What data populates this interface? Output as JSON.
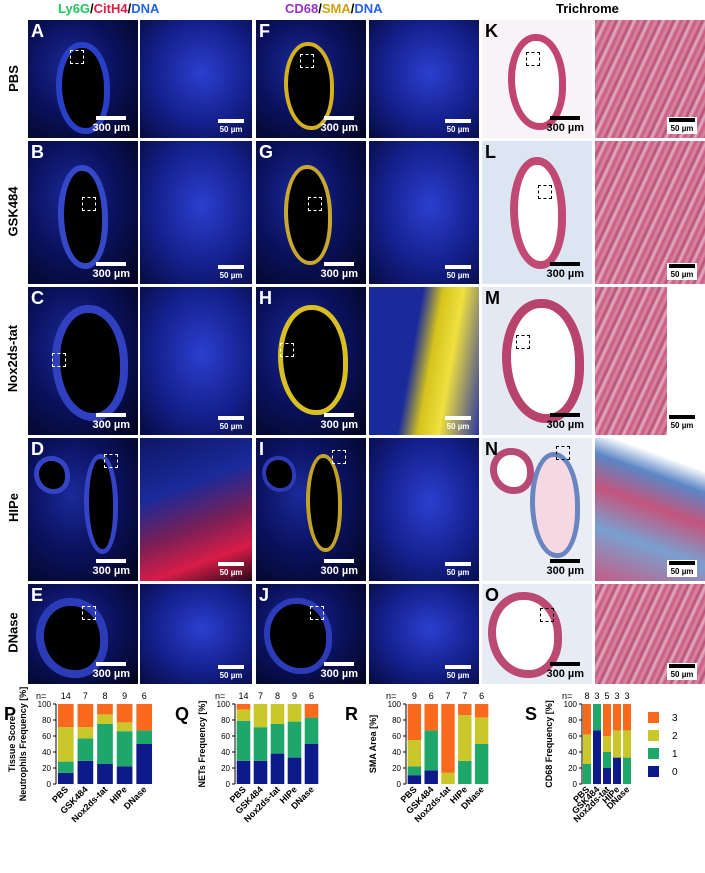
{
  "headers": {
    "fluor1": {
      "a": "Ly6G",
      "sep1": "/",
      "b": "CitH4",
      "sep2": "/",
      "c": "DNA"
    },
    "fluor2": {
      "a": "CD68",
      "sep1": "/",
      "b": "SMA",
      "sep2": "/",
      "c": "DNA"
    },
    "trichrome": "Trichrome"
  },
  "colors": {
    "ly6g": "#22c55e",
    "cith4": "#e11d48",
    "dna": "#2563eb",
    "cd68": "#9b30c7",
    "sma": "#d4a10f",
    "c3": "#fb6a1c",
    "c2": "#c9c72a",
    "c1": "#1fa66b",
    "c0": "#0e1a8a"
  },
  "rows": [
    "PBS",
    "GSK484",
    "Nox2ds-tat",
    "HIPe",
    "DNase"
  ],
  "panel_letters": {
    "col1": [
      "A",
      "B",
      "C",
      "D",
      "E"
    ],
    "col2": [
      "F",
      "G",
      "H",
      "I",
      "J"
    ],
    "col3": [
      "K",
      "L",
      "M",
      "N",
      "O"
    ]
  },
  "scale": {
    "big": "300 µm",
    "small": "50 µm"
  },
  "chart_data": [
    {
      "type": "bar",
      "stacked": true,
      "panel": "P",
      "ylabel": "Tissue Score\nNeutrophils Frequency [%]",
      "categories": [
        "PBS",
        "GSK484",
        "Nox2ds-tat",
        "HIPe",
        "DNase"
      ],
      "n_label": "n=",
      "n": [
        "14",
        "7",
        "8",
        "9",
        "6"
      ],
      "ylim": [
        0,
        100
      ],
      "yticks": [
        "0",
        "20",
        "40",
        "60",
        "80",
        "100"
      ],
      "series": [
        {
          "name": "0",
          "values": [
            14,
            29,
            25,
            22,
            50
          ]
        },
        {
          "name": "1",
          "values": [
            14,
            28,
            50,
            44,
            17
          ]
        },
        {
          "name": "2",
          "values": [
            43,
            14,
            12,
            11,
            0
          ]
        },
        {
          "name": "3",
          "values": [
            29,
            29,
            13,
            23,
            33
          ]
        }
      ]
    },
    {
      "type": "bar",
      "stacked": true,
      "panel": "Q",
      "ylabel": "NETs Frequency [%]",
      "categories": [
        "PBS",
        "GSK484",
        "Nox2ds-tat",
        "HIPe",
        "DNase"
      ],
      "n_label": "n=",
      "n": [
        "14",
        "7",
        "8",
        "9",
        "6"
      ],
      "ylim": [
        0,
        100
      ],
      "yticks": [
        "0",
        "20",
        "40",
        "60",
        "80",
        "100"
      ],
      "series": [
        {
          "name": "0",
          "values": [
            29,
            29,
            38,
            33,
            50
          ]
        },
        {
          "name": "1",
          "values": [
            50,
            42,
            37,
            45,
            33
          ]
        },
        {
          "name": "2",
          "values": [
            14,
            29,
            25,
            22,
            0
          ]
        },
        {
          "name": "3",
          "values": [
            7,
            0,
            0,
            0,
            17
          ]
        }
      ]
    },
    {
      "type": "bar",
      "stacked": true,
      "panel": "R",
      "ylabel": "SMA Area [%]",
      "categories": [
        "PBS",
        "GSK484",
        "Nox2ds-tat",
        "HIPe",
        "DNase"
      ],
      "n_label": "n=",
      "n": [
        "9",
        "6",
        "7",
        "7",
        "6"
      ],
      "ylim": [
        0,
        100
      ],
      "yticks": [
        "0",
        "20",
        "40",
        "60",
        "80",
        "100"
      ],
      "series": [
        {
          "name": "0",
          "values": [
            11,
            17,
            0,
            0,
            0
          ]
        },
        {
          "name": "1",
          "values": [
            11,
            50,
            0,
            29,
            50
          ]
        },
        {
          "name": "2",
          "values": [
            33,
            0,
            14,
            57,
            33
          ]
        },
        {
          "name": "3",
          "values": [
            45,
            33,
            86,
            14,
            17
          ]
        }
      ]
    },
    {
      "type": "bar",
      "stacked": true,
      "panel": "S",
      "ylabel": "CD68 Frequency [%]",
      "categories": [
        "PBS",
        "GSK484",
        "Nox2ds-tat",
        "HIPe",
        "DNase"
      ],
      "n_label": "n=",
      "n": [
        "8",
        "3",
        "5",
        "3",
        "3"
      ],
      "ylim": [
        0,
        100
      ],
      "yticks": [
        "0",
        "20",
        "40",
        "60",
        "80",
        "100"
      ],
      "series": [
        {
          "name": "0",
          "values": [
            0,
            67,
            20,
            33,
            0
          ]
        },
        {
          "name": "1",
          "values": [
            25,
            33,
            20,
            0,
            33
          ]
        },
        {
          "name": "2",
          "values": [
            37,
            0,
            20,
            34,
            34
          ]
        },
        {
          "name": "3",
          "values": [
            38,
            0,
            40,
            33,
            33
          ]
        }
      ],
      "legend": [
        "3",
        "2",
        "1",
        "0"
      ]
    }
  ]
}
